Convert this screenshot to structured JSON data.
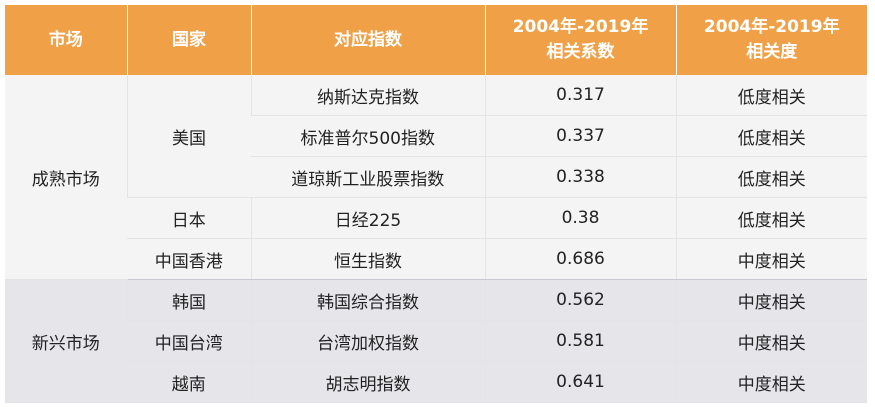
{
  "headers": {
    "market": "市场",
    "country": "国家",
    "index": "对应指数",
    "corr_line1": "2004年-2019年",
    "corr_line2": "相关系数",
    "deg_line1": "2004年-2019年",
    "deg_line2": "相关度"
  },
  "groups": [
    {
      "market": "成熟市场",
      "countries": [
        {
          "name": "美国",
          "rows": [
            {
              "index": "纳斯达克指数",
              "coef": "0.317",
              "degree": "低度相关"
            },
            {
              "index": "标准普尔500指数",
              "coef": "0.337",
              "degree": "低度相关"
            },
            {
              "index": "道琼斯工业股票指数",
              "coef": "0.338",
              "degree": "低度相关"
            }
          ]
        },
        {
          "name": "日本",
          "rows": [
            {
              "index": "日经225",
              "coef": "0.38",
              "degree": "低度相关"
            }
          ]
        },
        {
          "name": "中国香港",
          "rows": [
            {
              "index": "恒生指数",
              "coef": "0.686",
              "degree": "中度相关"
            }
          ]
        }
      ]
    },
    {
      "market": "新兴市场",
      "countries": [
        {
          "name": "韩国",
          "rows": [
            {
              "index": "韩国综合指数",
              "coef": "0.562",
              "degree": "中度相关"
            }
          ]
        },
        {
          "name": "中国台湾",
          "rows": [
            {
              "index": "台湾加权指数",
              "coef": "0.581",
              "degree": "中度相关"
            }
          ]
        },
        {
          "name": "越南",
          "rows": [
            {
              "index": "胡志明指数",
              "coef": "0.641",
              "degree": "中度相关"
            }
          ]
        }
      ]
    }
  ]
}
